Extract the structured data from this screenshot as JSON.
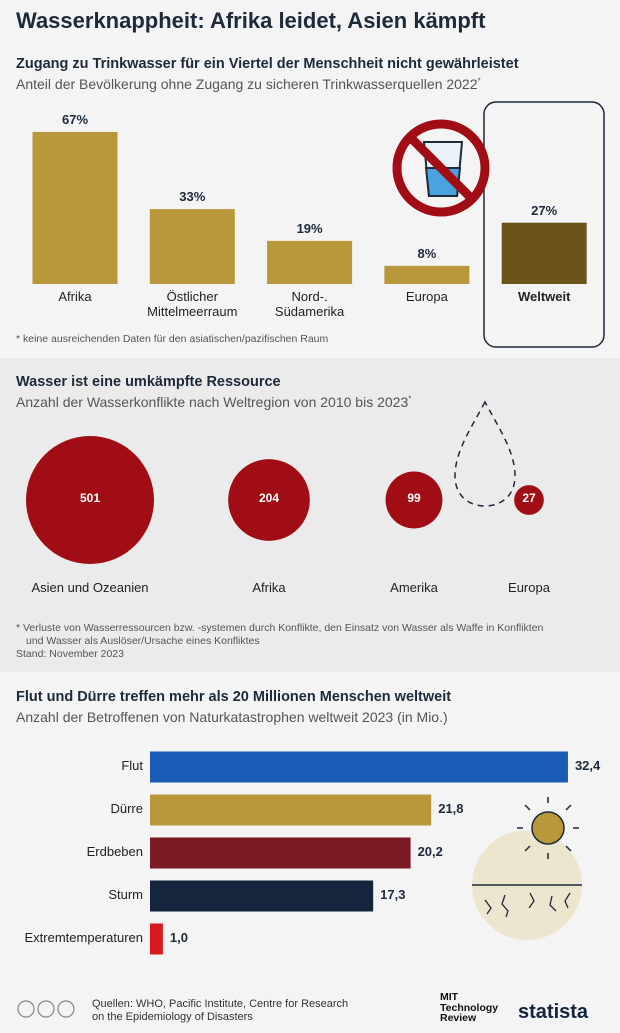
{
  "title": "Wasserknappheit: Afrika leidet, Asien kämpft",
  "chart_data": [
    {
      "type": "bar",
      "title": "Zugang zu Trinkwasser für ein Viertel der Menschheit nicht gewährleistet",
      "subtitle": "Anteil der Bevölkerung ohne Zugang zu sicheren Trinkwasserquellen 2022",
      "subtitle_marker": "*",
      "categories": [
        "Afrika",
        "Östlicher Mittelmeerraum",
        "Nord-. Südamerika",
        "Europa",
        "Weltweit"
      ],
      "values": [
        67,
        33,
        19,
        8,
        27
      ],
      "value_labels": [
        "67%",
        "33%",
        "19%",
        "8%",
        "27%"
      ],
      "colors": [
        "#b8983a",
        "#b8983a",
        "#b8983a",
        "#b8983a",
        "#6b5419"
      ],
      "note": "* keine ausreichenden Daten für den asiatischen/pazifischen Raum"
    },
    {
      "type": "bubble",
      "title": "Wasser ist eine umkämpfte Ressource",
      "subtitle": "Anzahl der Wasserkonflikte nach Weltregion von 2010 bis 2023",
      "subtitle_marker": "*",
      "categories": [
        "Asien und Ozeanien",
        "Afrika",
        "Amerika",
        "Europa"
      ],
      "values": [
        501,
        204,
        99,
        27
      ],
      "color": "#a00d14",
      "notes": [
        "* Verluste von Wasserressourcen bzw. -systemen durch Konflikte, den Einsatz von Wasser als Waffe in Konflikten",
        "und Wasser als Auslöser/Ursache eines Konfliktes",
        "Stand: November 2023"
      ]
    },
    {
      "type": "barh",
      "title": "Flut und Dürre treffen mehr als 20 Millionen Menschen weltweit",
      "subtitle": "Anzahl der Betroffenen von Naturkatastrophen weltweit 2023 (in Mio.)",
      "categories": [
        "Flut",
        "Dürre",
        "Erdbeben",
        "Sturm",
        "Extremtemperaturen"
      ],
      "values": [
        32.4,
        21.8,
        20.2,
        17.3,
        1.0
      ],
      "value_labels": [
        "32,4",
        "21,8",
        "20,2",
        "17,3",
        "1,0"
      ],
      "colors": [
        "#1a5bb5",
        "#b8983a",
        "#7a1a25",
        "#14253d",
        "#d71920"
      ]
    }
  ],
  "footer": {
    "sources": [
      "Quellen: WHO, Pacific Institute, Centre for Research",
      "on the Epidemiology of Disasters"
    ],
    "logos": [
      "MIT Technology Review",
      "statista"
    ]
  }
}
